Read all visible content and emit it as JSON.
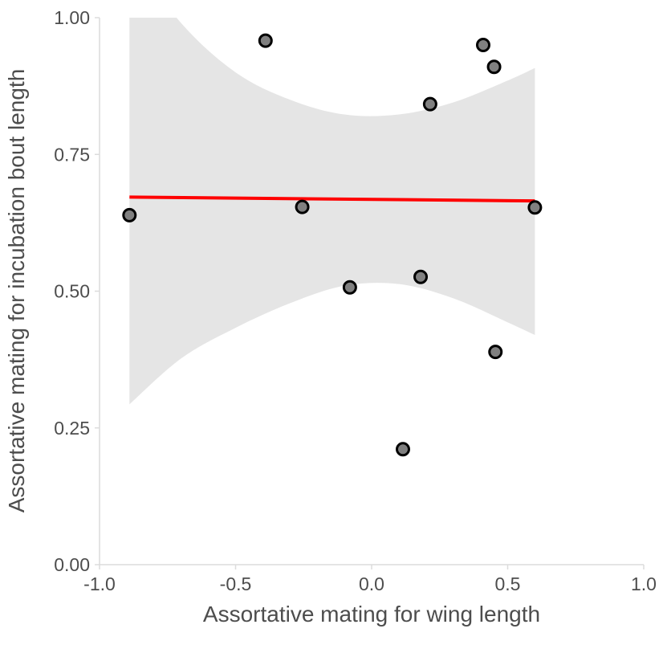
{
  "chart_data": {
    "type": "scatter",
    "title": "",
    "xlabel": "Assortative mating for wing length",
    "ylabel": "Assortative mating for incubation bout length",
    "xlim": [
      -1.0,
      1.0
    ],
    "ylim": [
      0.0,
      1.0
    ],
    "x_ticks": [
      "-1.0",
      "-0.5",
      "0.0",
      "0.5",
      "1.0"
    ],
    "y_ticks": [
      "0.00",
      "0.25",
      "0.50",
      "0.75",
      "1.00"
    ],
    "grid": false,
    "legend": "none",
    "points": [
      {
        "x": -0.89,
        "y": 0.639
      },
      {
        "x": -0.39,
        "y": 0.958
      },
      {
        "x": -0.255,
        "y": 0.654
      },
      {
        "x": -0.08,
        "y": 0.507
      },
      {
        "x": 0.115,
        "y": 0.211
      },
      {
        "x": 0.18,
        "y": 0.526
      },
      {
        "x": 0.215,
        "y": 0.842
      },
      {
        "x": 0.41,
        "y": 0.95
      },
      {
        "x": 0.45,
        "y": 0.91
      },
      {
        "x": 0.455,
        "y": 0.389
      },
      {
        "x": 0.6,
        "y": 0.653
      }
    ],
    "trend_line": {
      "x": [
        -0.89,
        0.6
      ],
      "y": [
        0.672,
        0.665
      ]
    },
    "confidence_band": {
      "x": [
        -0.89,
        -0.7,
        -0.5,
        -0.3,
        -0.1,
        0.1,
        0.3,
        0.5,
        0.6
      ],
      "upper": [
        1.12,
        0.99,
        0.9,
        0.85,
        0.823,
        0.823,
        0.845,
        0.885,
        0.908
      ],
      "lower": [
        0.293,
        0.377,
        0.433,
        0.478,
        0.51,
        0.513,
        0.487,
        0.443,
        0.42
      ]
    },
    "colors": {
      "points_fill": "#808080",
      "points_stroke": "#000000",
      "trend_line": "#ff0000",
      "confidence_band": "#e5e5e5",
      "axis_line": "#dcdcdc",
      "text": "#4d4d4d"
    }
  }
}
